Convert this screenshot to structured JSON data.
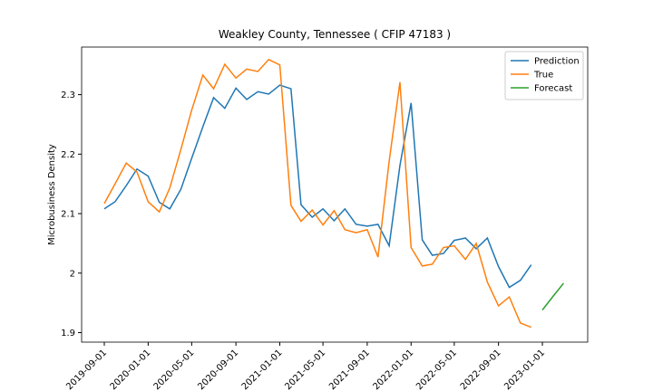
{
  "chart_data": {
    "type": "line",
    "title": "Weakley County, Tennessee ( CFIP 47183 )",
    "y_label": "Microbusiness Density",
    "x": [
      "2019-09-01",
      "2019-10-01",
      "2019-11-01",
      "2019-12-01",
      "2020-01-01",
      "2020-02-01",
      "2020-03-01",
      "2020-04-01",
      "2020-05-01",
      "2020-06-01",
      "2020-07-01",
      "2020-08-01",
      "2020-09-01",
      "2020-10-01",
      "2020-11-01",
      "2020-12-01",
      "2021-01-01",
      "2021-02-01",
      "2021-03-01",
      "2021-04-01",
      "2021-05-01",
      "2021-06-01",
      "2021-07-01",
      "2021-08-01",
      "2021-09-01",
      "2021-10-01",
      "2021-11-01",
      "2021-12-01",
      "2022-01-01",
      "2022-02-01",
      "2022-03-01",
      "2022-04-01",
      "2022-05-01",
      "2022-06-01",
      "2022-07-01",
      "2022-08-01",
      "2022-09-01",
      "2022-10-01",
      "2022-11-01",
      "2022-12-01",
      "2023-01-01",
      "2023-02-01",
      "2023-03-01"
    ],
    "series": [
      {
        "name": "Prediction",
        "color": "#1f77b4",
        "values": [
          2.108,
          2.12,
          2.147,
          2.175,
          2.163,
          2.119,
          2.108,
          2.141,
          2.193,
          2.246,
          2.295,
          2.277,
          2.311,
          2.292,
          2.305,
          2.301,
          2.316,
          2.31,
          2.115,
          2.094,
          2.108,
          2.088,
          2.108,
          2.082,
          2.079,
          2.082,
          2.046,
          2.181,
          2.286,
          2.056,
          2.03,
          2.033,
          2.055,
          2.059,
          2.041,
          2.059,
          2.011,
          1.976,
          1.988,
          2.014,
          null,
          null,
          null
        ]
      },
      {
        "name": "True",
        "color": "#ff7f0e",
        "values": [
          2.117,
          2.15,
          2.185,
          2.17,
          2.12,
          2.103,
          2.143,
          2.208,
          2.274,
          2.333,
          2.31,
          2.351,
          2.328,
          2.343,
          2.339,
          2.359,
          2.35,
          2.114,
          2.087,
          2.106,
          2.081,
          2.105,
          2.073,
          2.068,
          2.073,
          2.027,
          2.188,
          2.321,
          2.043,
          2.012,
          2.015,
          2.043,
          2.046,
          2.023,
          2.05,
          1.985,
          1.945,
          1.96,
          1.916,
          1.909,
          null,
          null,
          null
        ]
      },
      {
        "name": "Forecast",
        "color": "#2ca02c",
        "values": [
          null,
          null,
          null,
          null,
          null,
          null,
          null,
          null,
          null,
          null,
          null,
          null,
          null,
          null,
          null,
          null,
          null,
          null,
          null,
          null,
          null,
          null,
          null,
          null,
          null,
          null,
          null,
          null,
          null,
          null,
          null,
          null,
          null,
          null,
          null,
          null,
          null,
          null,
          null,
          null,
          1.938,
          1.962,
          1.983
        ]
      }
    ],
    "xlim": [
      "2019-06-30",
      "2023-05-07"
    ],
    "xticks": [
      "2019-09-01",
      "2020-01-01",
      "2020-05-01",
      "2020-09-01",
      "2021-01-01",
      "2021-05-01",
      "2021-09-01",
      "2022-01-01",
      "2022-05-01",
      "2022-09-01",
      "2023-01-01"
    ],
    "ylim": [
      1.884,
      2.38
    ],
    "yticks": [
      1.9,
      2.0,
      2.1,
      2.2,
      2.3
    ],
    "legend": "upper right"
  }
}
